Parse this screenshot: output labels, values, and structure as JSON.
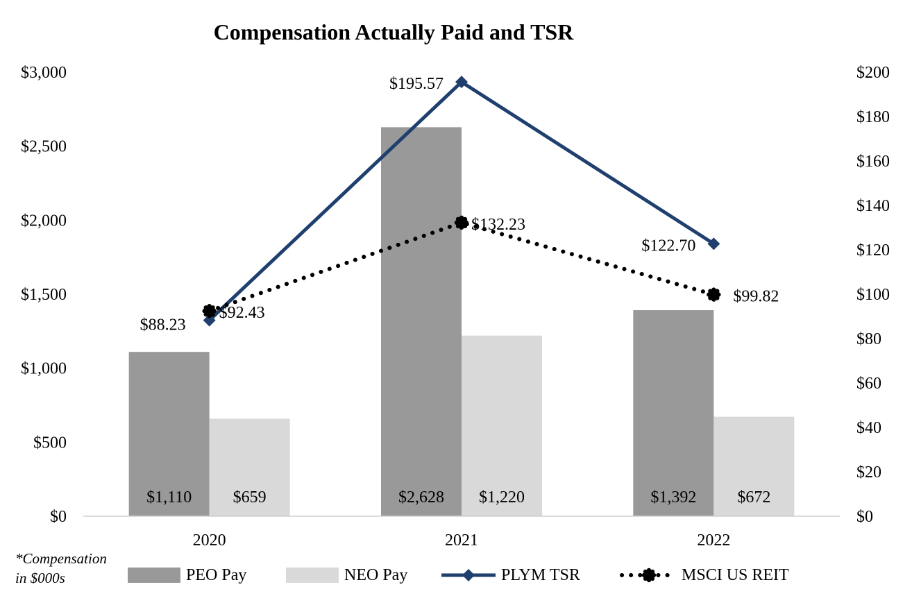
{
  "chart_data": {
    "type": "bar",
    "title": "Compensation Actually Paid and TSR",
    "footnote": [
      "*Compensation",
      "in $000s"
    ],
    "categories": [
      "2020",
      "2021",
      "2022"
    ],
    "y_left": {
      "min": 0,
      "max": 3000,
      "step": 500,
      "ticks": [
        "$0",
        "$500",
        "$1,000",
        "$1,500",
        "$2,000",
        "$2,500",
        "$3,000"
      ]
    },
    "y_right": {
      "min": 0,
      "max": 200,
      "step": 20,
      "ticks": [
        "$0",
        "$20",
        "$40",
        "$60",
        "$80",
        "$100",
        "$120",
        "$140",
        "$160",
        "$180",
        "$200"
      ]
    },
    "bar_series": [
      {
        "name": "PEO Pay",
        "color": "#999999",
        "axis": "left",
        "values": [
          1110,
          2628,
          1392
        ],
        "labels": [
          "$1,110",
          "$2,628",
          "$1,392"
        ]
      },
      {
        "name": "NEO Pay",
        "color": "#d9d9d9",
        "axis": "left",
        "values": [
          659,
          1220,
          672
        ],
        "labels": [
          "$659",
          "$1,220",
          "$672"
        ]
      }
    ],
    "line_series": [
      {
        "name": "PLYM TSR",
        "color": "#1f3f6e",
        "style": "solid",
        "marker": "diamond",
        "axis": "right",
        "values": [
          88.23,
          195.57,
          122.7
        ],
        "labels": [
          "$88.23",
          "$195.57",
          "$122.70"
        ]
      },
      {
        "name": "MSCI US REIT",
        "color": "#000000",
        "style": "dotted",
        "marker": "circle",
        "axis": "right",
        "values": [
          92.43,
          132.23,
          99.82
        ],
        "labels": [
          "$92.43",
          "$132.23",
          "$99.82"
        ]
      }
    ],
    "legend_position": "bottom",
    "grid": false
  }
}
